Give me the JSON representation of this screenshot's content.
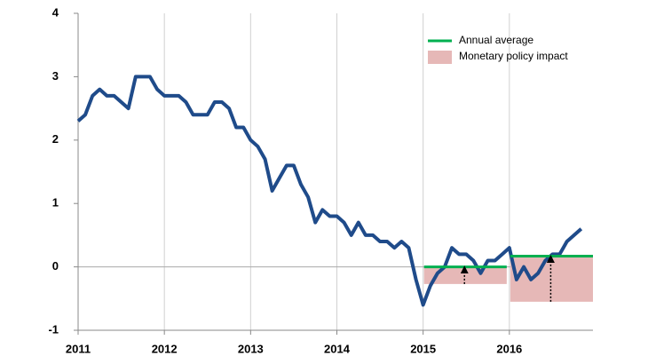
{
  "chart_data": {
    "type": "line",
    "x": [
      2011,
      2011.083,
      2011.167,
      2011.25,
      2011.333,
      2011.417,
      2011.5,
      2011.583,
      2011.667,
      2011.75,
      2011.833,
      2011.917,
      2012,
      2012.083,
      2012.167,
      2012.25,
      2012.333,
      2012.417,
      2012.5,
      2012.583,
      2012.667,
      2012.75,
      2012.833,
      2012.917,
      2013,
      2013.083,
      2013.167,
      2013.25,
      2013.333,
      2013.417,
      2013.5,
      2013.583,
      2013.667,
      2013.75,
      2013.833,
      2013.917,
      2014,
      2014.083,
      2014.167,
      2014.25,
      2014.333,
      2014.417,
      2014.5,
      2014.583,
      2014.667,
      2014.75,
      2014.833,
      2014.917,
      2015,
      2015.083,
      2015.167,
      2015.25,
      2015.333,
      2015.417,
      2015.5,
      2015.583,
      2015.667,
      2015.75,
      2015.833,
      2015.917,
      2016,
      2016.083,
      2016.167,
      2016.25,
      2016.333,
      2016.417,
      2016.5,
      2016.583,
      2016.667,
      2016.75,
      2016.833
    ],
    "series": [
      {
        "color": "#1f4b8a",
        "values": [
          2.3,
          2.4,
          2.7,
          2.8,
          2.7,
          2.7,
          2.6,
          2.5,
          3.0,
          3.0,
          3.0,
          2.8,
          2.7,
          2.7,
          2.7,
          2.6,
          2.4,
          2.4,
          2.4,
          2.6,
          2.6,
          2.5,
          2.2,
          2.2,
          2.0,
          1.9,
          1.7,
          1.2,
          1.4,
          1.6,
          1.6,
          1.3,
          1.1,
          0.7,
          0.9,
          0.8,
          0.8,
          0.7,
          0.5,
          0.7,
          0.5,
          0.5,
          0.4,
          0.4,
          0.3,
          0.4,
          0.3,
          -0.2,
          -0.6,
          -0.3,
          -0.1,
          0.0,
          0.3,
          0.2,
          0.2,
          0.1,
          -0.1,
          0.1,
          0.1,
          0.2,
          0.3,
          -0.2,
          0.0,
          -0.2,
          -0.1,
          0.1,
          0.2,
          0.2,
          0.4,
          0.5,
          0.6
        ]
      }
    ],
    "annual_average": {
      "name": "Annual average",
      "color": "#00b050",
      "periods": [
        {
          "x": [
            2015,
            2016
          ],
          "value": 0
        },
        {
          "x": [
            2016,
            2017
          ],
          "value": 0.17
        }
      ]
    },
    "policy_impact": {
      "name": "Monetary policy impact",
      "color": "#e6b8b7",
      "boxes": [
        {
          "x": [
            2015,
            2016
          ],
          "low": -0.27,
          "high": 0
        },
        {
          "x": [
            2016,
            2017
          ],
          "low": -0.55,
          "high": 0.17
        }
      ]
    },
    "xlim": [
      2011,
      2017
    ],
    "xticks": [
      2011,
      2012,
      2013,
      2014,
      2015,
      2016
    ],
    "ylim": [
      -1,
      4
    ],
    "yticks": [
      -1,
      0,
      1,
      2,
      3,
      4
    ],
    "grid": true,
    "legend": "upper right"
  }
}
